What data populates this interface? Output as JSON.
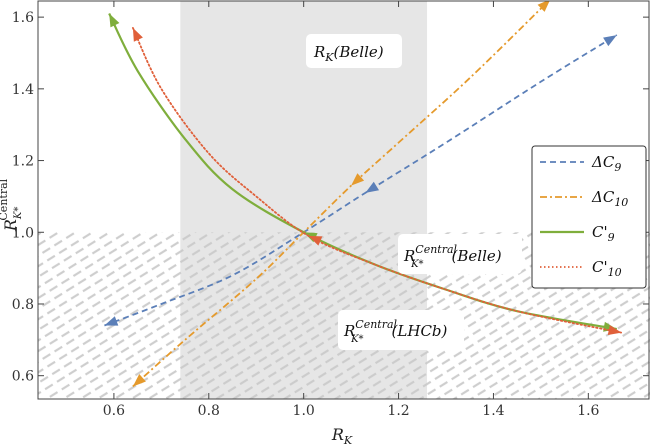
{
  "chart_data": {
    "type": "line",
    "xlabel": "R_K",
    "ylabel": "R_K*^Central",
    "xlim": [
      0.44,
      1.73
    ],
    "ylim": [
      0.535,
      1.645
    ],
    "x_ticks": [
      0.6,
      0.8,
      1.0,
      1.2,
      1.4,
      1.6
    ],
    "y_ticks": [
      0.6,
      0.8,
      1.0,
      1.2,
      1.4,
      1.6
    ],
    "x_tick_labels": [
      "0.6",
      "0.8",
      "1.0",
      "1.2",
      "1.4",
      "1.6"
    ],
    "y_tick_labels": [
      "0.6",
      "0.8",
      "1.0",
      "1.2",
      "1.4",
      "1.6"
    ],
    "band_belle_rk": {
      "label": "R_K(Belle)",
      "xmin": 0.74,
      "xmax": 1.26
    },
    "band_rkstar_central": {
      "ymin": 0.535,
      "ymax": 1.0
    },
    "annotations": [
      {
        "id": "rk-belle",
        "text_main": "R",
        "text_sub": "K",
        "text_tail": "(Belle)"
      },
      {
        "id": "rkstar-belle",
        "text_main": "R",
        "text_sup": "Central",
        "text_sub": "K*",
        "text_tail": "(Belle)"
      },
      {
        "id": "rkstar-lhcb",
        "text_main": "R",
        "text_sup": "Central",
        "text_sub": "K*",
        "text_tail": "(LHCb)"
      }
    ],
    "series": [
      {
        "name": "ΔC9",
        "label_main": "ΔC",
        "label_sub": "9",
        "color": "#5b7fb8",
        "style": "dashed",
        "x": [
          0.58,
          0.7,
          0.85,
          1.0,
          1.13,
          1.3,
          1.5,
          1.66
        ],
        "y": [
          0.74,
          0.8,
          0.88,
          1.0,
          1.11,
          1.25,
          1.42,
          1.55
        ]
      },
      {
        "name": "ΔC10",
        "label_main": "ΔC",
        "label_sub": "10",
        "color": "#e59a2c",
        "style": "dashdot",
        "x": [
          0.64,
          0.75,
          0.9,
          1.0,
          1.1,
          1.2,
          1.35,
          1.52
        ],
        "y": [
          0.57,
          0.7,
          0.87,
          1.0,
          1.13,
          1.25,
          1.43,
          1.65
        ]
      },
      {
        "name": "C'9",
        "label_main": "C'",
        "label_sub": "9",
        "color": "#7fae3c",
        "style": "solid",
        "x": [
          0.59,
          0.65,
          0.75,
          0.85,
          1.0,
          1.15,
          1.3,
          1.45,
          1.66
        ],
        "y": [
          1.61,
          1.45,
          1.26,
          1.12,
          1.0,
          0.91,
          0.84,
          0.78,
          0.73
        ]
      },
      {
        "name": "C'10",
        "label_main": "C'",
        "label_sub": "10",
        "color": "#e0603a",
        "style": "dotted",
        "x": [
          0.64,
          0.7,
          0.8,
          0.9,
          1.01,
          1.15,
          1.3,
          1.45,
          1.67
        ],
        "y": [
          1.57,
          1.4,
          1.22,
          1.1,
          0.99,
          0.91,
          0.84,
          0.78,
          0.72
        ]
      }
    ]
  }
}
